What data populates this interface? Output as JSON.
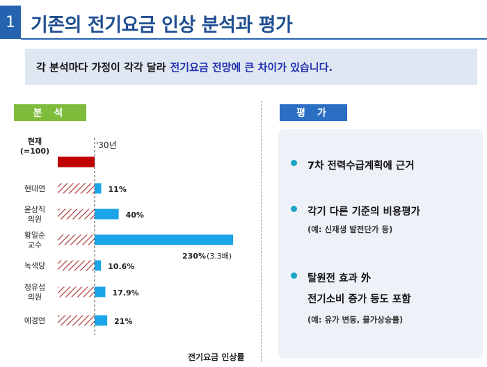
{
  "header": {
    "number": "1",
    "title": "기존의 전기요금 인상 분석과 평가"
  },
  "summary": {
    "prefix": "각 분석마다 가정이 각각 달라",
    "highlight": "전기요금 전망에 큰 차이가 있습니다."
  },
  "analysis_label": "분 석",
  "evaluation_label": "평 가",
  "evaluation": {
    "items": [
      {
        "main": "7차 전력수급계획에 근거",
        "sub": ""
      },
      {
        "main": "각기 다른 기준의 비용평가",
        "sub": "(예: 신재생 발전단가 등)"
      },
      {
        "main": "탈원전 효과 外",
        "main2": "전기소비 증가 등도 포함",
        "sub": "(예: 유가 변동, 물가상승률)"
      }
    ]
  },
  "chart_data": {
    "type": "bar",
    "orientation": "horizontal",
    "xlabel": "전기요금 인상률",
    "col_header_left": "현재\n(=100)",
    "col_header_right": "'30년",
    "categories": [
      "현재\n(=100)",
      "현대연",
      "윤상직\n의원",
      "황일순\n교수",
      "녹색당",
      "정유섭\n의원",
      "에경연"
    ],
    "values": [
      0,
      11,
      40,
      230,
      10.6,
      17.9,
      21
    ],
    "labels": [
      "",
      "11%",
      "40%",
      "230%",
      "10.6%",
      "17.9%",
      "21%"
    ],
    "extra_note": "(3.3배)",
    "baseline_color": "#c00000",
    "bar_color": "#1ba5e8",
    "hatch_color": "#b04040"
  }
}
